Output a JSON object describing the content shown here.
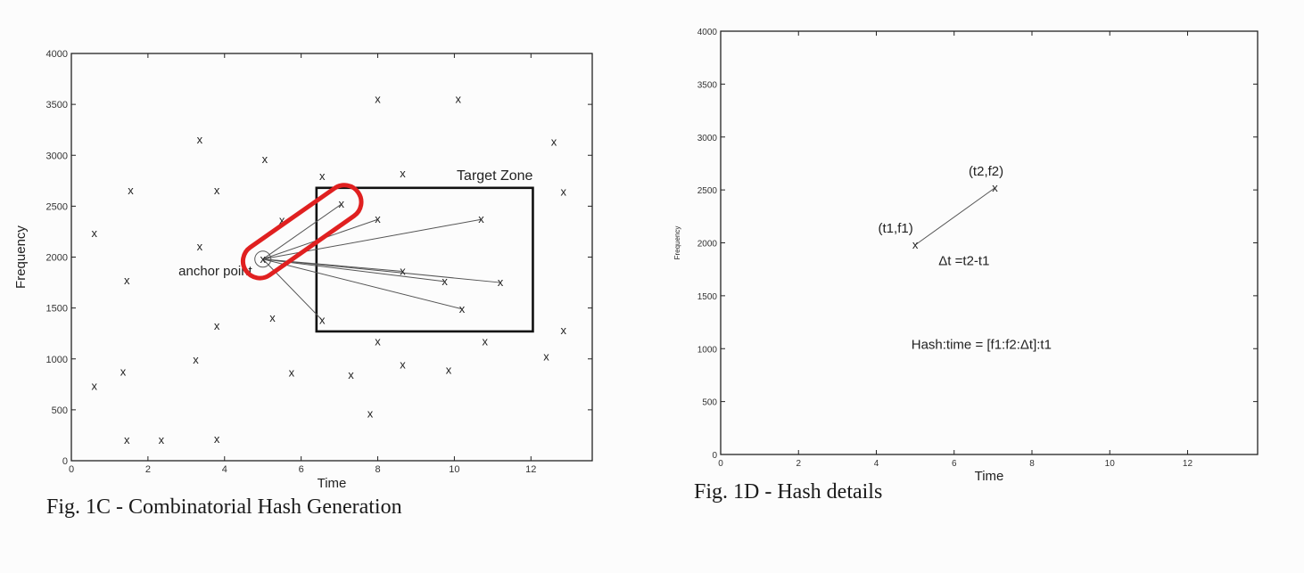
{
  "chart_data": [
    {
      "type": "scatter",
      "caption": "Fig. 1C - Combinatorial Hash Generation",
      "xlabel": "Time",
      "ylabel": "Frequency",
      "xlim": [
        0,
        13.6
      ],
      "ylim": [
        0,
        4000
      ],
      "xticks": [
        "0",
        "2",
        "4",
        "6",
        "8",
        "10",
        "12"
      ],
      "yticks": [
        "0",
        "500",
        "1000",
        "1500",
        "2000",
        "2500",
        "3000",
        "3500",
        "4000"
      ],
      "grid": false,
      "marker_label": "x",
      "points": [
        [
          0.6,
          2230
        ],
        [
          0.6,
          730
        ],
        [
          1.35,
          870
        ],
        [
          1.45,
          1770
        ],
        [
          1.45,
          200
        ],
        [
          1.55,
          2650
        ],
        [
          2.35,
          200
        ],
        [
          3.25,
          990
        ],
        [
          3.35,
          3150
        ],
        [
          3.35,
          2100
        ],
        [
          3.8,
          1320
        ],
        [
          3.8,
          2650
        ],
        [
          3.8,
          210
        ],
        [
          5.05,
          2960
        ],
        [
          5.25,
          1400
        ],
        [
          5.5,
          2360
        ],
        [
          5.75,
          860
        ],
        [
          6.55,
          2790
        ],
        [
          6.55,
          1380
        ],
        [
          7.05,
          2520
        ],
        [
          7.3,
          840
        ],
        [
          7.8,
          460
        ],
        [
          8.0,
          3550
        ],
        [
          8.0,
          2370
        ],
        [
          8.0,
          1170
        ],
        [
          8.65,
          2820
        ],
        [
          8.65,
          1860
        ],
        [
          8.65,
          940
        ],
        [
          9.75,
          1760
        ],
        [
          9.85,
          890
        ],
        [
          10.1,
          3550
        ],
        [
          10.2,
          1490
        ],
        [
          10.7,
          2370
        ],
        [
          10.8,
          1170
        ],
        [
          11.2,
          1750
        ],
        [
          12.4,
          1020
        ],
        [
          12.6,
          3130
        ],
        [
          12.85,
          2640
        ],
        [
          12.85,
          1280
        ]
      ],
      "anchor": {
        "x": 5.0,
        "y": 1980,
        "label": "anchor point"
      },
      "target_zone": {
        "label": "Target Zone",
        "x_range": [
          6.4,
          12.05
        ],
        "y_range": [
          1270,
          2680
        ]
      },
      "pairings": [
        [
          7.05,
          2520
        ],
        [
          8.0,
          2370
        ],
        [
          10.7,
          2370
        ],
        [
          8.65,
          1860
        ],
        [
          9.75,
          1760
        ],
        [
          11.2,
          1750
        ],
        [
          10.2,
          1490
        ],
        [
          6.55,
          1380
        ]
      ],
      "highlight_pair": [
        [
          5.0,
          1980
        ],
        [
          7.05,
          2520
        ]
      ],
      "highlight_color": "#e02020"
    },
    {
      "type": "line",
      "caption": "Fig. 1D - Hash details",
      "xlabel": "Time",
      "ylabel": "Frequency",
      "xlim": [
        0,
        13.8
      ],
      "ylim": [
        0,
        4000
      ],
      "xticks": [
        "0",
        "2",
        "4",
        "6",
        "8",
        "10",
        "12"
      ],
      "yticks": [
        "0",
        "500",
        "1000",
        "1500",
        "2000",
        "2500",
        "3000",
        "3500",
        "4000"
      ],
      "grid": false,
      "marker_label": "x",
      "points": [
        {
          "x": 5.0,
          "y": 1980,
          "label": "(t1,f1)"
        },
        {
          "x": 7.05,
          "y": 2520,
          "label": "(t2,f2)"
        }
      ],
      "annotations": [
        {
          "x": 5.6,
          "y": 1790,
          "text": "Δt =t2-t1"
        },
        {
          "x": 4.9,
          "y": 1000,
          "text": "Hash:time = [f1:f2:Δt]:t1"
        }
      ]
    }
  ]
}
